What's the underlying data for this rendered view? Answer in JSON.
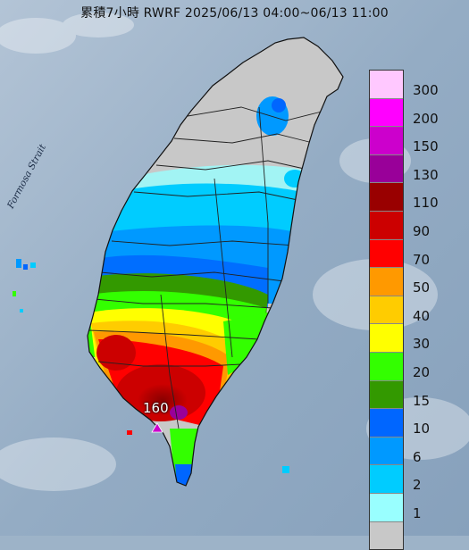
{
  "title": "累積7小時 RWRF 2025/06/13 04:00~06/13 11:00",
  "strait_label": "Formosa Strait",
  "max_marker": {
    "label": "160"
  },
  "legend": {
    "levels": [
      {
        "label": "300",
        "color": "#ffc8ff"
      },
      {
        "label": "200",
        "color": "#ff00ff"
      },
      {
        "label": "150",
        "color": "#cc00cc"
      },
      {
        "label": "130",
        "color": "#990099"
      },
      {
        "label": "110",
        "color": "#990000"
      },
      {
        "label": "90",
        "color": "#cc0000"
      },
      {
        "label": "70",
        "color": "#ff0000"
      },
      {
        "label": "50",
        "color": "#ff9900"
      },
      {
        "label": "40",
        "color": "#ffcc00"
      },
      {
        "label": "30",
        "color": "#ffff00"
      },
      {
        "label": "20",
        "color": "#33ff00"
      },
      {
        "label": "15",
        "color": "#339900"
      },
      {
        "label": "10",
        "color": "#0066ff"
      },
      {
        "label": "6",
        "color": "#0099ff"
      },
      {
        "label": "2",
        "color": "#00ccff"
      },
      {
        "label": "1",
        "color": "#99ffff"
      },
      {
        "label": "",
        "color": "#c8c8c8"
      }
    ]
  }
}
